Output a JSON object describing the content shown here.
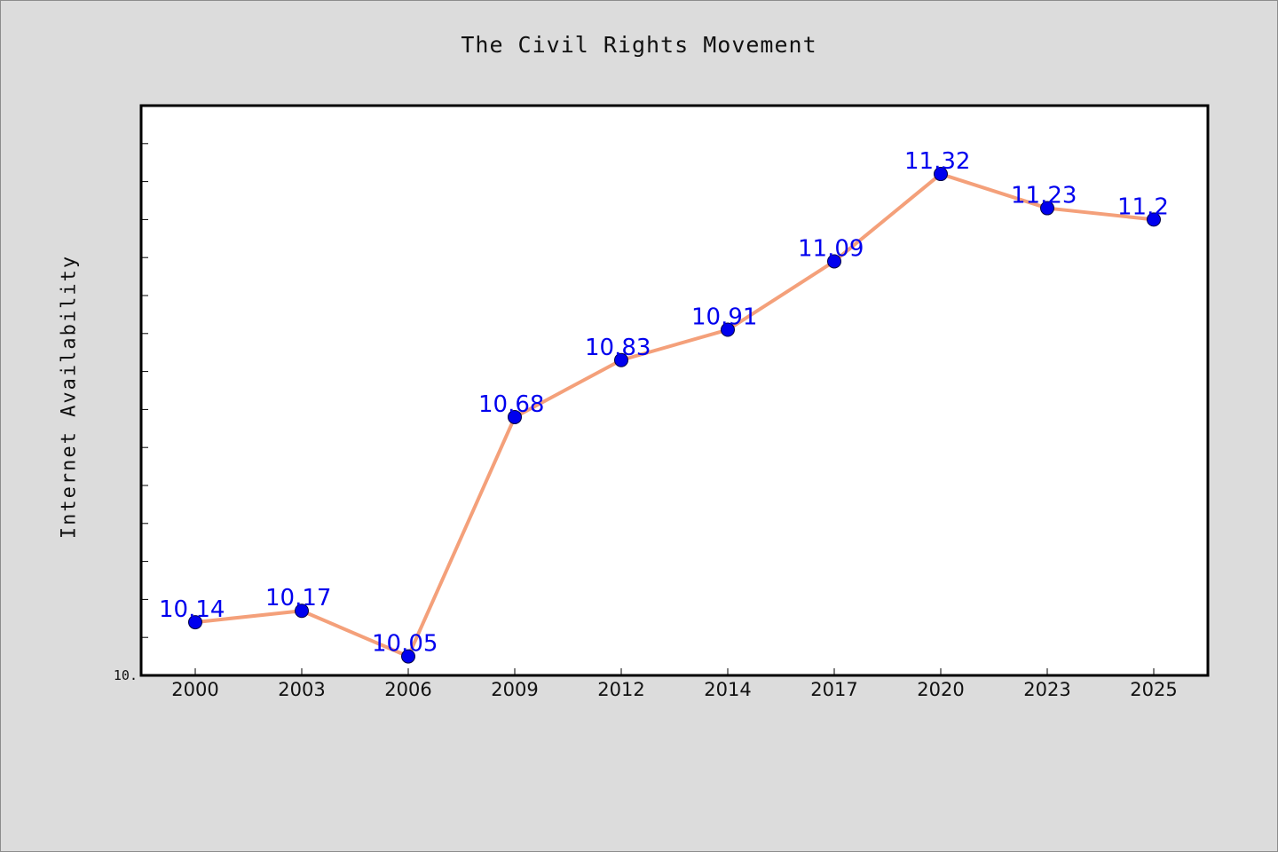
{
  "chart_data": {
    "type": "line",
    "title": "The Civil Rights Movement",
    "ylabel": "Internet Availability",
    "xlabel": "",
    "categories": [
      "2000",
      "2003",
      "2006",
      "2009",
      "2012",
      "2014",
      "2017",
      "2020",
      "2023",
      "2025"
    ],
    "series": [
      {
        "values": [
          10.14,
          10.17,
          10.05,
          10.68,
          10.83,
          10.91,
          11.09,
          11.32,
          11.23,
          11.2
        ],
        "labels": [
          "10.14",
          "10.17",
          "10.05",
          "10.68",
          "10.83",
          "10.91",
          "11.09",
          "11.32",
          "11.23",
          "11.2"
        ]
      }
    ],
    "ylim": [
      10.0,
      11.5
    ],
    "ytick_label": "10.",
    "grid": false,
    "colors": {
      "line": "#f4a07a",
      "marker": "#0000ee",
      "label": "#0000ee",
      "plot_bg": "#ffffff",
      "page_bg": "#dcdcdc"
    }
  }
}
